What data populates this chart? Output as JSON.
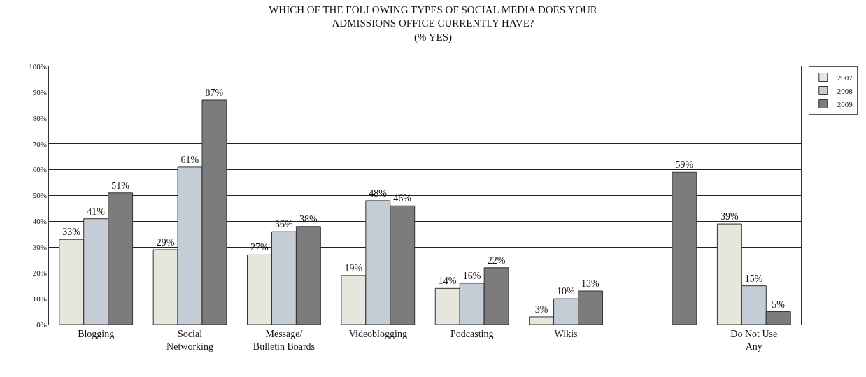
{
  "chart_data": {
    "type": "bar",
    "title": "WHICH OF THE FOLLOWING TYPES OF SOCIAL MEDIA DOES YOUR\nADMISSIONS OFFICE CURRENTLY HAVE?\n(% YES)",
    "categories": [
      "Blogging",
      "Social\nNetworking",
      "Message/\nBulletin Boards",
      "Videoblogging",
      "Podcasting",
      "Wikis",
      null,
      "Do Not Use\nAny"
    ],
    "series": [
      {
        "name": "2007",
        "color": "#e6e6dc",
        "values": [
          33,
          29,
          27,
          19,
          14,
          3,
          null,
          39
        ],
        "value_labels": [
          "33%",
          "29%",
          "27%",
          "19%",
          "14%",
          "3%",
          null,
          "39%"
        ]
      },
      {
        "name": "2008",
        "color": "#c4ccd6",
        "values": [
          41,
          61,
          36,
          48,
          16,
          10,
          null,
          15
        ],
        "value_labels": [
          "41%",
          "61%",
          "36%",
          "48%",
          "16%",
          "10%",
          null,
          "15%"
        ]
      },
      {
        "name": "2009",
        "color": "#7c7c7c",
        "values": [
          51,
          87,
          38,
          46,
          22,
          13,
          59,
          5
        ],
        "value_labels": [
          "51%",
          "87%",
          "38%",
          "46%",
          "22%",
          "13%",
          "59%",
          "5%"
        ]
      }
    ],
    "ylim": [
      0,
      100
    ],
    "yticks": [
      {
        "value": 0,
        "label": "0%"
      },
      {
        "value": 10,
        "label": "10%"
      },
      {
        "value": 20,
        "label": "20%"
      },
      {
        "value": 30,
        "label": "30%"
      },
      {
        "value": 40,
        "label": "40%"
      },
      {
        "value": 50,
        "label": "50%"
      },
      {
        "value": 60,
        "label": "60%"
      },
      {
        "value": 70,
        "label": "70%"
      },
      {
        "value": 80,
        "label": "80%"
      },
      {
        "value": 90,
        "label": "90%"
      },
      {
        "value": 100,
        "label": "100%"
      }
    ],
    "grid": "y",
    "legend": "top right"
  }
}
